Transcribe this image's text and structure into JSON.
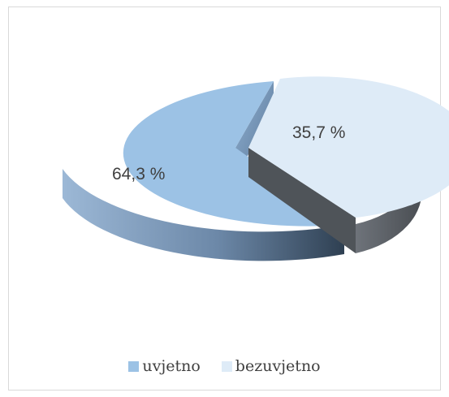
{
  "chart_data": {
    "type": "pie",
    "title": "",
    "categories": [
      "uvjetno",
      "bezuvjetno"
    ],
    "values": [
      64.3,
      35.7
    ],
    "data_labels": [
      "64,3 %",
      "35,7 %"
    ],
    "colors": [
      "#9cc2e5",
      "#deebf7"
    ],
    "side_colors": [
      "#6f8aa6",
      "#5c6166"
    ],
    "exploded_slice": "bezuvjetno",
    "legend_position": "bottom"
  },
  "legend": {
    "items": [
      {
        "label": "uvjetno",
        "color": "#9cc2e5"
      },
      {
        "label": "bezuvjetno",
        "color": "#deebf7"
      }
    ]
  }
}
